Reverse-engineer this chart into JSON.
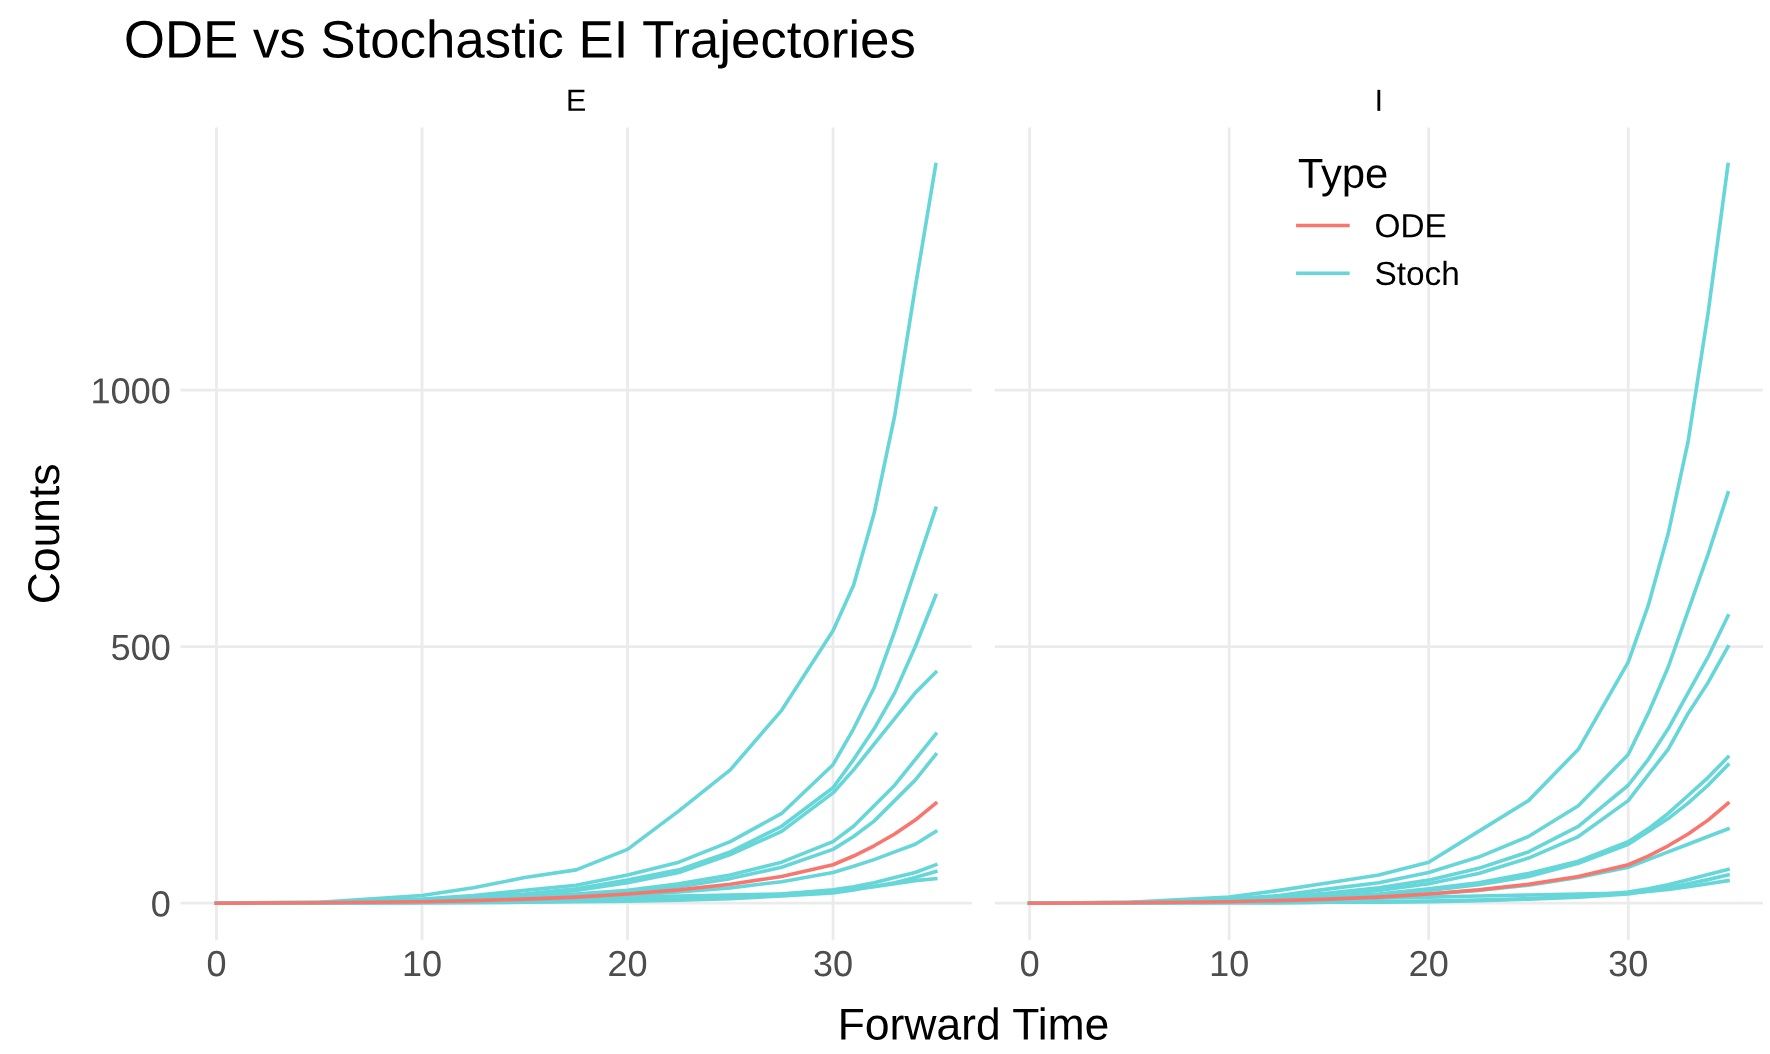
{
  "chart_data": [
    {
      "type": "line",
      "title": "ODE vs Stochastic EI Trajectories",
      "subtitle": "E",
      "xlabel": "Forward Time",
      "ylabel": "Counts",
      "x": [
        0,
        5,
        10,
        12.5,
        15,
        17.5,
        20,
        22.5,
        25,
        27.5,
        30,
        31,
        32,
        33,
        34,
        35
      ],
      "xlim": [
        -1.75,
        36.75
      ],
      "xticks": [
        0,
        10,
        20,
        30
      ],
      "ylim": [
        -72,
        1512
      ],
      "yticks": [
        0,
        500,
        1000
      ],
      "grid": true,
      "series": [
        {
          "color": "#f8766d",
          "values": [
            0,
            1,
            3,
            5,
            8,
            12,
            18,
            26,
            37,
            52,
            75,
            92,
            112,
            135,
            162,
            195
          ]
        },
        {
          "color": "#66d6d9",
          "values": [
            0,
            2,
            15,
            30,
            50,
            65,
            105,
            180,
            260,
            376,
            531,
            620,
            760,
            950,
            1200,
            1440
          ]
        },
        {
          "color": "#66d6d9",
          "values": [
            0,
            1,
            8,
            15,
            25,
            35,
            55,
            80,
            120,
            175,
            270,
            340,
            420,
            530,
            650,
            770
          ]
        },
        {
          "color": "#66d6d9",
          "values": [
            0,
            1,
            6,
            12,
            18,
            28,
            45,
            65,
            100,
            150,
            225,
            280,
            340,
            410,
            500,
            600
          ]
        },
        {
          "color": "#66d6d9",
          "values": [
            0,
            1,
            5,
            10,
            15,
            25,
            40,
            60,
            95,
            140,
            215,
            260,
            310,
            360,
            410,
            450
          ]
        },
        {
          "color": "#66d6d9",
          "values": [
            0,
            1,
            4,
            8,
            12,
            18,
            25,
            38,
            55,
            80,
            120,
            150,
            190,
            230,
            280,
            330
          ]
        },
        {
          "color": "#66d6d9",
          "values": [
            0,
            1,
            3,
            6,
            10,
            15,
            22,
            32,
            48,
            70,
            105,
            130,
            160,
            200,
            240,
            290
          ]
        },
        {
          "color": "#66d6d9",
          "values": [
            0,
            1,
            2,
            4,
            6,
            10,
            15,
            22,
            30,
            42,
            60,
            72,
            85,
            100,
            115,
            140
          ]
        },
        {
          "color": "#66d6d9",
          "values": [
            0,
            0,
            1,
            2,
            3,
            4,
            6,
            8,
            12,
            18,
            26,
            32,
            40,
            50,
            60,
            75
          ]
        },
        {
          "color": "#66d6d9",
          "values": [
            0,
            0,
            1,
            1,
            2,
            3,
            4,
            6,
            9,
            14,
            20,
            26,
            33,
            40,
            50,
            62
          ]
        },
        {
          "color": "#66d6d9",
          "values": [
            0,
            2,
            4,
            6,
            8,
            10,
            12,
            14,
            16,
            18,
            24,
            28,
            32,
            38,
            44,
            48
          ]
        }
      ]
    },
    {
      "type": "line",
      "subtitle": "I",
      "legend": "top",
      "legend_title": "Type",
      "tick_labels": "x",
      "x": [
        0,
        5,
        10,
        12.5,
        15,
        17.5,
        20,
        22.5,
        25,
        27.5,
        30,
        31,
        32,
        33,
        34,
        35
      ],
      "xlim": [
        -1.75,
        36.75
      ],
      "xticks": [
        0,
        10,
        20,
        30
      ],
      "ylim": [
        -72,
        1512
      ],
      "yticks": [
        0,
        500,
        1000
      ],
      "grid": true,
      "series": [
        {
          "name": "ODE",
          "color": "#f8766d",
          "values": [
            0,
            1,
            3,
            5,
            8,
            12,
            18,
            26,
            37,
            52,
            75,
            92,
            112,
            135,
            162,
            195
          ]
        },
        {
          "name": "Stoch",
          "color": "#66d6d9",
          "values": [
            0,
            2,
            12,
            25,
            40,
            55,
            80,
            140,
            200,
            300,
            470,
            580,
            720,
            900,
            1150,
            1440
          ]
        },
        {
          "color": "#66d6d9",
          "values": [
            0,
            1,
            8,
            15,
            28,
            40,
            60,
            90,
            130,
            190,
            290,
            370,
            460,
            570,
            680,
            800
          ]
        },
        {
          "color": "#66d6d9",
          "values": [
            0,
            1,
            6,
            12,
            20,
            30,
            45,
            68,
            100,
            150,
            230,
            280,
            340,
            410,
            480,
            560
          ]
        },
        {
          "color": "#66d6d9",
          "values": [
            0,
            1,
            5,
            10,
            16,
            25,
            38,
            58,
            88,
            130,
            200,
            250,
            300,
            370,
            430,
            500
          ]
        },
        {
          "color": "#66d6d9",
          "values": [
            0,
            1,
            4,
            8,
            12,
            18,
            28,
            40,
            58,
            82,
            120,
            145,
            175,
            210,
            245,
            285
          ]
        },
        {
          "color": "#66d6d9",
          "values": [
            0,
            1,
            3,
            7,
            11,
            16,
            25,
            36,
            52,
            78,
            115,
            140,
            165,
            195,
            230,
            270
          ]
        },
        {
          "color": "#66d6d9",
          "values": [
            0,
            1,
            3,
            5,
            8,
            12,
            18,
            25,
            35,
            50,
            70,
            85,
            100,
            115,
            130,
            145
          ]
        },
        {
          "color": "#66d6d9",
          "values": [
            0,
            0,
            1,
            1,
            2,
            3,
            4,
            6,
            9,
            13,
            22,
            28,
            36,
            46,
            56,
            66
          ]
        },
        {
          "color": "#66d6d9",
          "values": [
            0,
            0,
            1,
            1,
            2,
            2,
            3,
            5,
            8,
            12,
            18,
            24,
            30,
            38,
            46,
            55
          ]
        },
        {
          "color": "#66d6d9",
          "values": [
            0,
            2,
            4,
            6,
            8,
            10,
            12,
            14,
            16,
            18,
            20,
            23,
            27,
            32,
            38,
            44
          ]
        }
      ]
    }
  ]
}
